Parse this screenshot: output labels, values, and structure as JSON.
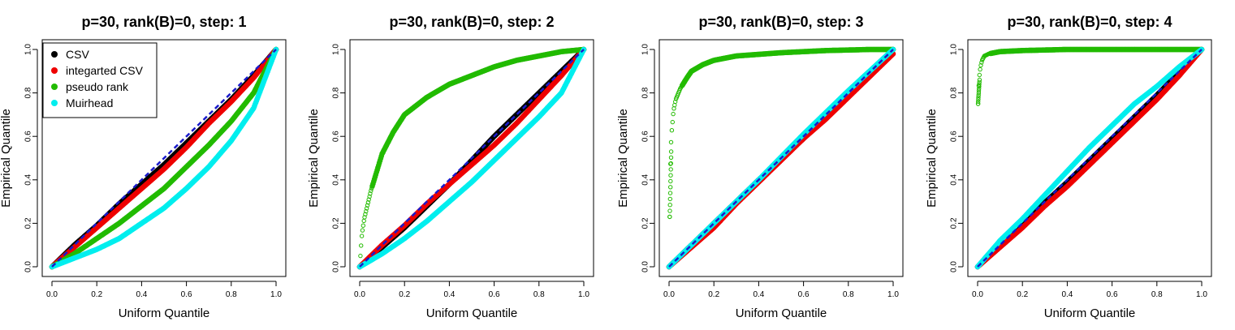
{
  "figure": {
    "panel_count": 4
  },
  "chart_data": [
    {
      "type": "scatter",
      "title": "p=30, rank(B)=0, step: 1",
      "xlabel": "Uniform Quantile",
      "ylabel": "Empirical Quantile",
      "xlim": [
        0,
        1
      ],
      "ylim": [
        0,
        1
      ],
      "xticks": [
        "0.0",
        "0.2",
        "0.4",
        "0.6",
        "0.8",
        "1.0"
      ],
      "yticks": [
        "0.0",
        "0.2",
        "0.4",
        "0.6",
        "0.8",
        "1.0"
      ],
      "legend": {
        "position": "top-left",
        "entries": [
          "CSV",
          "integarted CSV",
          "pseudo rank",
          "Muirhead"
        ]
      },
      "reference_line": {
        "from": [
          0,
          0
        ],
        "to": [
          1,
          1
        ],
        "style": "dashed",
        "color": "#1a1acc"
      },
      "series": [
        {
          "name": "CSV",
          "color": "#000000",
          "x": [
            0,
            0.05,
            0.1,
            0.2,
            0.3,
            0.4,
            0.5,
            0.6,
            0.7,
            0.8,
            0.9,
            1.0
          ],
          "values": [
            0,
            0.05,
            0.1,
            0.19,
            0.29,
            0.38,
            0.47,
            0.57,
            0.67,
            0.77,
            0.88,
            1.0
          ]
        },
        {
          "name": "integarted CSV",
          "color": "#ee0000",
          "x": [
            0,
            0.05,
            0.1,
            0.2,
            0.3,
            0.4,
            0.5,
            0.6,
            0.7,
            0.8,
            0.9,
            1.0
          ],
          "values": [
            0,
            0.045,
            0.09,
            0.18,
            0.27,
            0.36,
            0.45,
            0.55,
            0.66,
            0.76,
            0.87,
            1.0
          ]
        },
        {
          "name": "pseudo rank",
          "color": "#22bb00",
          "x": [
            0,
            0.05,
            0.1,
            0.2,
            0.3,
            0.4,
            0.5,
            0.6,
            0.7,
            0.8,
            0.9,
            1.0
          ],
          "values": [
            0,
            0.03,
            0.06,
            0.13,
            0.2,
            0.28,
            0.36,
            0.46,
            0.56,
            0.67,
            0.8,
            1.0
          ]
        },
        {
          "name": "Muirhead",
          "color": "#00eeee",
          "x": [
            0,
            0.05,
            0.1,
            0.2,
            0.3,
            0.4,
            0.5,
            0.6,
            0.7,
            0.8,
            0.9,
            1.0
          ],
          "values": [
            0,
            0.02,
            0.04,
            0.08,
            0.13,
            0.2,
            0.27,
            0.36,
            0.46,
            0.58,
            0.73,
            1.0
          ]
        }
      ]
    },
    {
      "type": "scatter",
      "title": "p=30, rank(B)=0, step: 2",
      "xlabel": "Uniform Quantile",
      "ylabel": "Empirical Quantile",
      "xlim": [
        0,
        1
      ],
      "ylim": [
        0,
        1
      ],
      "xticks": [
        "0.0",
        "0.2",
        "0.4",
        "0.6",
        "0.8",
        "1.0"
      ],
      "yticks": [
        "0.0",
        "0.2",
        "0.4",
        "0.6",
        "0.8",
        "1.0"
      ],
      "reference_line": {
        "from": [
          0,
          0
        ],
        "to": [
          1,
          1
        ],
        "style": "dashed",
        "color": "#1a1acc"
      },
      "series": [
        {
          "name": "CSV",
          "color": "#000000",
          "x": [
            0,
            0.1,
            0.2,
            0.3,
            0.4,
            0.5,
            0.6,
            0.7,
            0.8,
            0.9,
            1.0
          ],
          "values": [
            0,
            0.09,
            0.18,
            0.28,
            0.38,
            0.49,
            0.6,
            0.7,
            0.8,
            0.9,
            1.0
          ]
        },
        {
          "name": "integarted CSV",
          "color": "#ee0000",
          "x": [
            0,
            0.1,
            0.2,
            0.3,
            0.4,
            0.5,
            0.6,
            0.7,
            0.8,
            0.9,
            1.0
          ],
          "values": [
            0,
            0.1,
            0.19,
            0.29,
            0.38,
            0.47,
            0.56,
            0.66,
            0.77,
            0.88,
            1.0
          ]
        },
        {
          "name": "pseudo rank",
          "color": "#22bb00",
          "x": [
            0,
            0.005,
            0.01,
            0.02,
            0.05,
            0.1,
            0.15,
            0.2,
            0.3,
            0.4,
            0.5,
            0.6,
            0.7,
            0.8,
            0.9,
            1.0
          ],
          "values": [
            0,
            0.08,
            0.15,
            0.22,
            0.35,
            0.52,
            0.62,
            0.7,
            0.78,
            0.84,
            0.88,
            0.92,
            0.95,
            0.97,
            0.99,
            1.0
          ]
        },
        {
          "name": "Muirhead",
          "color": "#00eeee",
          "x": [
            0,
            0.1,
            0.2,
            0.3,
            0.4,
            0.5,
            0.6,
            0.7,
            0.8,
            0.9,
            1.0
          ],
          "values": [
            0,
            0.06,
            0.13,
            0.21,
            0.3,
            0.39,
            0.49,
            0.59,
            0.69,
            0.8,
            1.0
          ]
        }
      ]
    },
    {
      "type": "scatter",
      "title": "p=30, rank(B)=0, step: 3",
      "xlabel": "Uniform Quantile",
      "ylabel": "Empirical Quantile",
      "xlim": [
        0,
        1
      ],
      "ylim": [
        0,
        1
      ],
      "xticks": [
        "0.0",
        "0.2",
        "0.4",
        "0.6",
        "0.8",
        "1.0"
      ],
      "yticks": [
        "0.0",
        "0.2",
        "0.4",
        "0.6",
        "0.8",
        "1.0"
      ],
      "reference_line": {
        "from": [
          0,
          0
        ],
        "to": [
          1,
          1
        ],
        "style": "dashed",
        "color": "#1a1acc"
      },
      "series": [
        {
          "name": "CSV",
          "color": "#000000",
          "x": [
            0,
            0.2,
            0.4,
            0.6,
            0.8,
            1.0
          ],
          "values": [
            0,
            0.2,
            0.4,
            0.59,
            0.79,
            1.0
          ]
        },
        {
          "name": "integarted CSV",
          "color": "#ee0000",
          "x": [
            0,
            0.1,
            0.2,
            0.3,
            0.4,
            0.5,
            0.6,
            0.7,
            0.8,
            0.9,
            1.0
          ],
          "values": [
            0,
            0.09,
            0.18,
            0.29,
            0.39,
            0.49,
            0.59,
            0.68,
            0.78,
            0.88,
            0.98
          ]
        },
        {
          "name": "pseudo rank",
          "color": "#22bb00",
          "x": [
            0.003,
            0.005,
            0.008,
            0.01,
            0.015,
            0.02,
            0.03,
            0.05,
            0.08,
            0.1,
            0.15,
            0.2,
            0.3,
            0.5,
            0.7,
            0.9,
            1.0
          ],
          "values": [
            0.23,
            0.44,
            0.53,
            0.6,
            0.66,
            0.72,
            0.77,
            0.82,
            0.87,
            0.9,
            0.93,
            0.95,
            0.97,
            0.985,
            0.995,
            1.0,
            1.0
          ]
        },
        {
          "name": "Muirhead",
          "color": "#00eeee",
          "x": [
            0,
            0.2,
            0.4,
            0.6,
            0.8,
            1.0
          ],
          "values": [
            0,
            0.2,
            0.4,
            0.61,
            0.81,
            1.0
          ]
        }
      ]
    },
    {
      "type": "scatter",
      "title": "p=30, rank(B)=0, step: 4",
      "xlabel": "Uniform Quantile",
      "ylabel": "Empirical Quantile",
      "xlim": [
        0,
        1
      ],
      "ylim": [
        0,
        1
      ],
      "xticks": [
        "0.0",
        "0.2",
        "0.4",
        "0.6",
        "0.8",
        "1.0"
      ],
      "yticks": [
        "0.0",
        "0.2",
        "0.4",
        "0.6",
        "0.8",
        "1.0"
      ],
      "reference_line": {
        "from": [
          0,
          0
        ],
        "to": [
          1,
          1
        ],
        "style": "dashed",
        "color": "#1a1acc"
      },
      "series": [
        {
          "name": "CSV",
          "color": "#000000",
          "x": [
            0,
            0.2,
            0.4,
            0.6,
            0.8,
            1.0
          ],
          "values": [
            0,
            0.2,
            0.39,
            0.59,
            0.79,
            1.0
          ]
        },
        {
          "name": "integarted CSV",
          "color": "#ee0000",
          "x": [
            0,
            0.1,
            0.2,
            0.3,
            0.4,
            0.5,
            0.6,
            0.7,
            0.8,
            0.9,
            1.0
          ],
          "values": [
            0,
            0.09,
            0.18,
            0.28,
            0.37,
            0.47,
            0.57,
            0.67,
            0.77,
            0.88,
            1.0
          ]
        },
        {
          "name": "pseudo rank",
          "color": "#22bb00",
          "x": [
            0.002,
            0.004,
            0.006,
            0.01,
            0.015,
            0.02,
            0.03,
            0.05,
            0.1,
            0.2,
            0.4,
            0.6,
            0.8,
            1.0
          ],
          "values": [
            0.75,
            0.8,
            0.86,
            0.9,
            0.93,
            0.95,
            0.97,
            0.98,
            0.99,
            0.995,
            1.0,
            1.0,
            1.0,
            1.0
          ]
        },
        {
          "name": "Muirhead",
          "color": "#00eeee",
          "x": [
            0,
            0.1,
            0.2,
            0.3,
            0.4,
            0.5,
            0.6,
            0.7,
            0.8,
            0.9,
            1.0
          ],
          "values": [
            0,
            0.12,
            0.22,
            0.33,
            0.44,
            0.55,
            0.65,
            0.75,
            0.83,
            0.92,
            1.0
          ]
        }
      ]
    }
  ]
}
